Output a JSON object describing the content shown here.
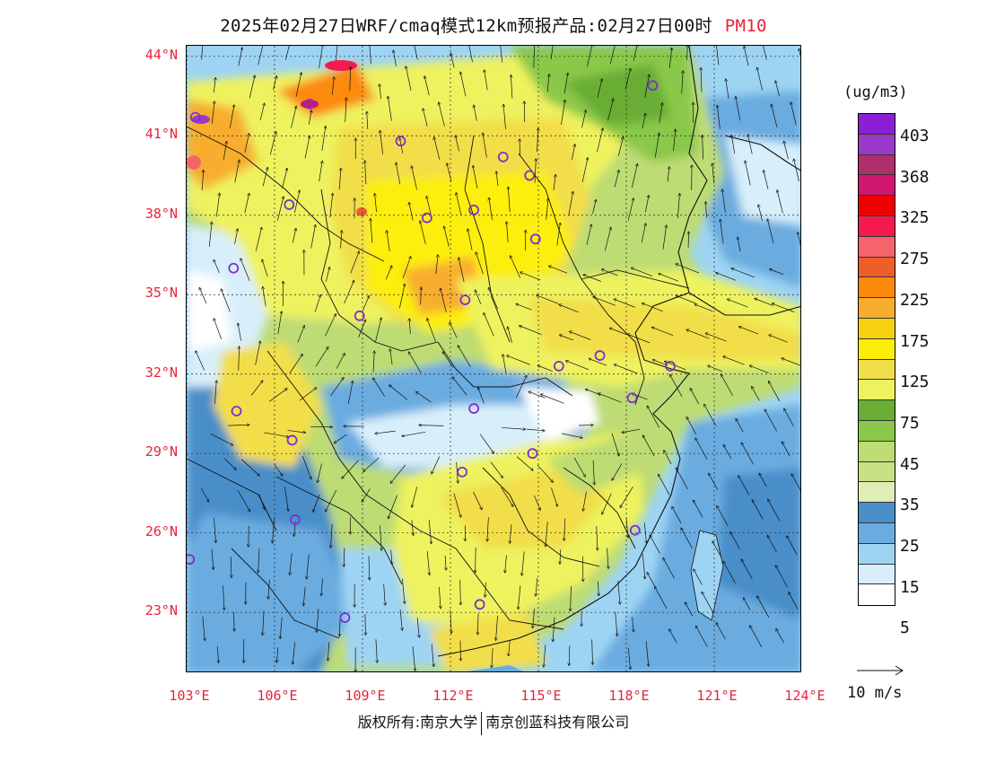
{
  "title": {
    "main": "2025年02月27日WRF/cmaq模式12km预报产品:02月27日00时",
    "variable": "PM10"
  },
  "map": {
    "lon_range": [
      103,
      124
    ],
    "lat_range": [
      20.7,
      44.4
    ],
    "lat_labels": [
      "44°N",
      "41°N",
      "38°N",
      "35°N",
      "32°N",
      "29°N",
      "26°N",
      "23°N"
    ],
    "lat_values": [
      44,
      41,
      38,
      35,
      32,
      29,
      26,
      23
    ],
    "lon_labels": [
      "103°E",
      "106°E",
      "109°E",
      "112°E",
      "115°E",
      "118°E",
      "121°E",
      "124°E"
    ],
    "lon_values": [
      103,
      106,
      109,
      112,
      115,
      118,
      121,
      124
    ],
    "stations": [
      {
        "lon": 103.3,
        "lat": 41.7
      },
      {
        "lon": 107.2,
        "lat": 42.2
      },
      {
        "lon": 110.3,
        "lat": 40.8
      },
      {
        "lon": 113.8,
        "lat": 40.2
      },
      {
        "lon": 114.7,
        "lat": 39.5
      },
      {
        "lon": 118.9,
        "lat": 42.9
      },
      {
        "lon": 106.5,
        "lat": 38.4
      },
      {
        "lon": 111.2,
        "lat": 37.9
      },
      {
        "lon": 112.8,
        "lat": 38.2
      },
      {
        "lon": 114.9,
        "lat": 37.1
      },
      {
        "lon": 104.6,
        "lat": 36.0
      },
      {
        "lon": 108.9,
        "lat": 34.2
      },
      {
        "lon": 112.5,
        "lat": 34.8
      },
      {
        "lon": 115.7,
        "lat": 32.3
      },
      {
        "lon": 117.1,
        "lat": 32.7
      },
      {
        "lon": 119.5,
        "lat": 32.3
      },
      {
        "lon": 118.2,
        "lat": 31.1
      },
      {
        "lon": 104.7,
        "lat": 30.6
      },
      {
        "lon": 112.8,
        "lat": 30.7
      },
      {
        "lon": 106.6,
        "lat": 29.5
      },
      {
        "lon": 114.8,
        "lat": 29.0
      },
      {
        "lon": 112.4,
        "lat": 28.3
      },
      {
        "lon": 106.7,
        "lat": 26.5
      },
      {
        "lon": 118.3,
        "lat": 26.1
      },
      {
        "lon": 103.1,
        "lat": 25.0
      },
      {
        "lon": 113.0,
        "lat": 23.3
      },
      {
        "lon": 108.4,
        "lat": 22.8
      }
    ]
  },
  "colorbar": {
    "unit": "(ug/m3)",
    "colors": [
      "#8b1fd6",
      "#9b39c8",
      "#b02f6a",
      "#d0166f",
      "#f00000",
      "#f4194f",
      "#f5646b",
      "#ef5d29",
      "#fb8a0a",
      "#f8ad2e",
      "#f7d10f",
      "#fcee0a",
      "#f2de4a",
      "#eef25f",
      "#69ad35",
      "#8ac84a",
      "#bddc73",
      "#c9e083",
      "#dfedb6",
      "#4a8ec9",
      "#6aace0",
      "#9ed4f3",
      "#d8effb",
      "#ffffff"
    ],
    "labels": [
      "403",
      "368",
      "325",
      "275",
      "225",
      "175",
      "125",
      "75",
      "45",
      "35",
      "25",
      "15",
      "5"
    ]
  },
  "vector_legend": {
    "label": "10  m/s"
  },
  "copyright": {
    "left": "版权所有:南京大学",
    "right": "南京创蓝科技有限公司"
  }
}
